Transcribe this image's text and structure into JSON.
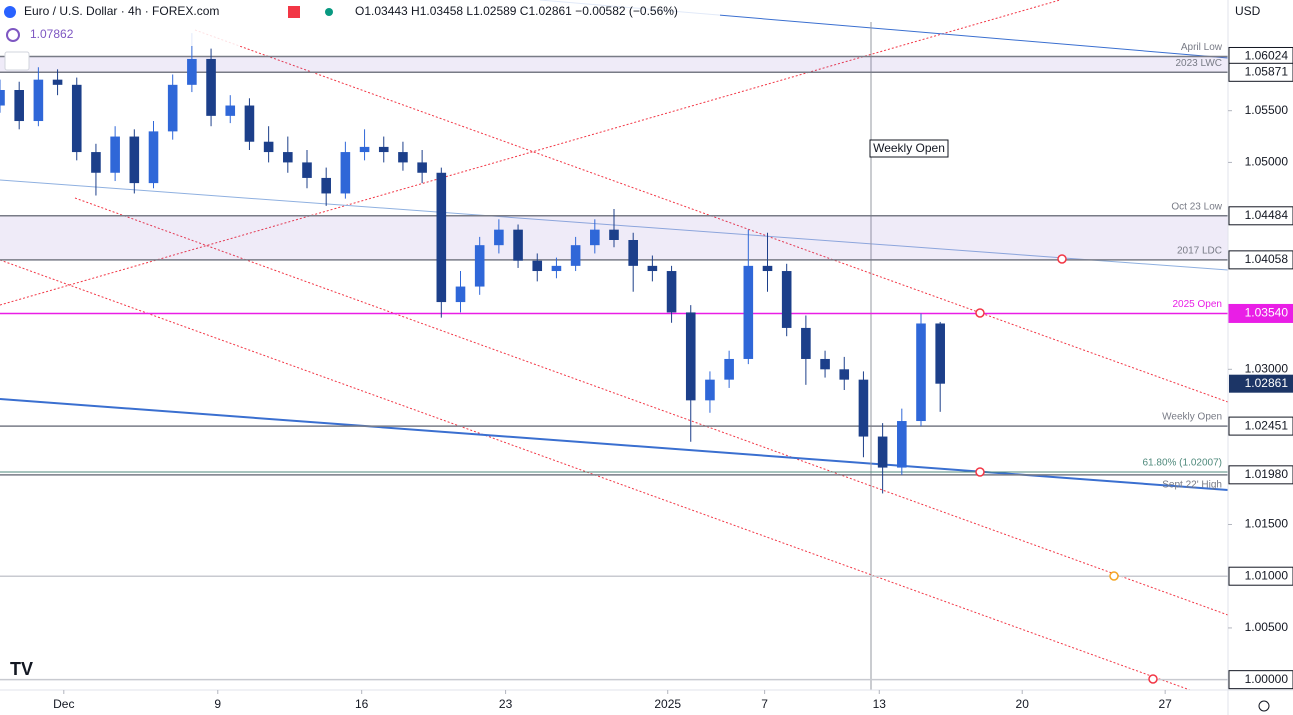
{
  "header": {
    "symbol": "Euro / U.S. Dollar · 4h · FOREX.com",
    "ohlc": "O1.03443 H1.03458 L1.02589 C1.02861 −0.00582 (−0.56%)",
    "indicator": "1.07862",
    "currency": "USD"
  },
  "chart_data": {
    "type": "candlestick",
    "up_color": "#2f67d8",
    "down_color": "#1c3f8a",
    "x": [
      0,
      4,
      8,
      12,
      16,
      20,
      24,
      28,
      32,
      36,
      40,
      44,
      48,
      52,
      56,
      60,
      64,
      68,
      72,
      76,
      80,
      84,
      88,
      92,
      96,
      100,
      104,
      108,
      112,
      116,
      120,
      124,
      128,
      132,
      136,
      140,
      144,
      148,
      152,
      156,
      160,
      164,
      168,
      172,
      176,
      180,
      184,
      188,
      192,
      196
    ],
    "open": [
      1.0555,
      1.057,
      1.054,
      1.058,
      1.0575,
      1.051,
      1.049,
      1.0525,
      1.048,
      1.053,
      1.0575,
      1.06,
      1.0545,
      1.0555,
      1.052,
      1.051,
      1.05,
      1.0485,
      1.047,
      1.051,
      1.0515,
      1.051,
      1.05,
      1.049,
      1.0365,
      1.038,
      1.042,
      1.0435,
      1.0405,
      1.0395,
      1.04,
      1.042,
      1.0435,
      1.0425,
      1.04,
      1.0395,
      1.0355,
      1.027,
      1.029,
      1.031,
      1.04,
      1.0395,
      1.034,
      1.031,
      1.03,
      1.029,
      1.0235,
      1.0205,
      1.025,
      1.03443
    ],
    "high": [
      1.058,
      1.0578,
      1.0592,
      1.059,
      1.0582,
      1.0518,
      1.0535,
      1.0532,
      1.054,
      1.0585,
      1.0625,
      1.061,
      1.0565,
      1.0562,
      1.0535,
      1.0525,
      1.0512,
      1.0495,
      1.052,
      1.0532,
      1.0525,
      1.052,
      1.0512,
      1.0495,
      1.0395,
      1.0428,
      1.0445,
      1.044,
      1.0412,
      1.0408,
      1.0428,
      1.0445,
      1.0455,
      1.0432,
      1.041,
      1.04,
      1.0362,
      1.0298,
      1.0318,
      1.0435,
      1.0432,
      1.0402,
      1.0352,
      1.0318,
      1.0312,
      1.0298,
      1.0248,
      1.0262,
      1.0354,
      1.03458
    ],
    "low": [
      1.0548,
      1.0532,
      1.0535,
      1.0565,
      1.0502,
      1.0468,
      1.0482,
      1.047,
      1.0475,
      1.0522,
      1.0568,
      1.0535,
      1.0538,
      1.0512,
      1.05,
      1.049,
      1.0475,
      1.0458,
      1.0465,
      1.0502,
      1.05,
      1.0492,
      1.048,
      1.035,
      1.0355,
      1.0372,
      1.0412,
      1.0398,
      1.0385,
      1.0388,
      1.0395,
      1.0412,
      1.0418,
      1.0375,
      1.0385,
      1.0345,
      1.023,
      1.0258,
      1.0282,
      1.0305,
      1.0375,
      1.0332,
      1.0285,
      1.0292,
      1.028,
      1.0215,
      1.018,
      1.0198,
      1.0245,
      1.02589
    ],
    "close": [
      1.057,
      1.054,
      1.058,
      1.0575,
      1.051,
      1.049,
      1.0525,
      1.048,
      1.053,
      1.0575,
      1.06,
      1.0545,
      1.0555,
      1.052,
      1.051,
      1.05,
      1.0485,
      1.047,
      1.051,
      1.0515,
      1.051,
      1.05,
      1.049,
      1.0365,
      1.038,
      1.042,
      1.0435,
      1.0405,
      1.0395,
      1.04,
      1.042,
      1.0435,
      1.0425,
      1.04,
      1.0395,
      1.0355,
      1.027,
      1.029,
      1.031,
      1.04,
      1.0395,
      1.034,
      1.031,
      1.03,
      1.029,
      1.0235,
      1.0205,
      1.025,
      1.03443,
      1.02861
    ],
    "xlim": [
      0,
      256
    ],
    "xticks": [
      {
        "value": 13.3,
        "label": "Dec"
      },
      {
        "value": 45.4,
        "label": "9"
      },
      {
        "value": 75.4,
        "label": "16"
      },
      {
        "value": 105.4,
        "label": "23"
      },
      {
        "value": 139.2,
        "label": "2025"
      },
      {
        "value": 159.4,
        "label": "7"
      },
      {
        "value": 183.3,
        "label": "13"
      },
      {
        "value": 213.1,
        "label": "20"
      },
      {
        "value": 242.9,
        "label": "27"
      }
    ],
    "ylim": [
      0.999,
      1.0657
    ],
    "yticks": [
      {
        "value": 1.055,
        "label": "1.05500"
      },
      {
        "value": 1.05,
        "label": "1.05000"
      },
      {
        "value": 1.03,
        "label": "1.03000"
      },
      {
        "value": 1.015,
        "label": "1.01500"
      },
      {
        "value": 1.005,
        "label": "1.00500"
      }
    ],
    "zones": [
      {
        "from": 1.05871,
        "to": 1.06024
      },
      {
        "from": 1.04058,
        "to": 1.04484
      }
    ],
    "levels": [
      {
        "name": "April Low",
        "value": 1.06024,
        "label": "1.06024",
        "color": "#787b86"
      },
      {
        "name": "2023 LWC",
        "value": 1.05871,
        "label": "1.05871",
        "color": "#787b86"
      },
      {
        "name": "Oct 23 Low",
        "value": 1.04484,
        "label": "1.04484",
        "color": "#787b86"
      },
      {
        "name": "2017 LDC",
        "value": 1.04058,
        "label": "1.04058",
        "color": "#787b86"
      },
      {
        "name": "2025 Open",
        "value": 1.0354,
        "label": "1.03540",
        "color": "#e91ee6"
      },
      {
        "name": "Weekly Open",
        "value": 1.02451,
        "label": "1.02451",
        "color": "#787b86"
      },
      {
        "name": "61.80% (1.02007)",
        "value": 1.02007,
        "color": "#4f8a7c"
      },
      {
        "name": "Sept 22' High",
        "value": 1.0198,
        "label": "1.01980",
        "color": "#787b86"
      },
      {
        "value": 1.01,
        "label": "1.01000",
        "color": "#c8cad0"
      },
      {
        "value": 1.0,
        "label": "1.00000",
        "color": "#c8cad0"
      }
    ],
    "current_price": {
      "value": 1.02861,
      "label": "1.02861",
      "color": "#1c3566"
    },
    "annotation": "Weekly Open"
  }
}
